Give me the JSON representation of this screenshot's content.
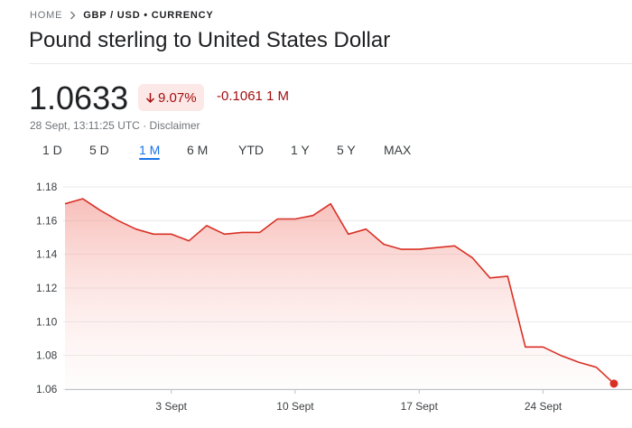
{
  "breadcrumb": {
    "home": "HOME",
    "current": "GBP / USD • CURRENCY"
  },
  "title": "Pound sterling to United States Dollar",
  "quote": {
    "price": "1.0633",
    "change_percent": "9.07%",
    "change_abs": "-0.1061 1 M",
    "timestamp": "28 Sept, 13:11:25 UTC",
    "separator": "·",
    "disclaimer": "Disclaimer"
  },
  "tabs": [
    "1 D",
    "5 D",
    "1 M",
    "6 M",
    "YTD",
    "1 Y",
    "5 Y",
    "MAX"
  ],
  "active_tab": "1 M",
  "colors": {
    "negative": "#d93025",
    "negative_bg": "#fce8e6",
    "accent": "#1a73e8"
  },
  "chart_data": {
    "type": "area",
    "title": "",
    "xlabel": "",
    "ylabel": "",
    "ylim": [
      1.06,
      1.18
    ],
    "y_ticks": [
      "1.18",
      "1.16",
      "1.14",
      "1.12",
      "1.10",
      "1.08",
      "1.06"
    ],
    "x_ticks": [
      {
        "label": "3 Sept",
        "x": 6
      },
      {
        "label": "10 Sept",
        "x": 13
      },
      {
        "label": "17 Sept",
        "x": 20
      },
      {
        "label": "24 Sept",
        "x": 27
      }
    ],
    "x": [
      0,
      1,
      2,
      3,
      4,
      5,
      6,
      7,
      8,
      9,
      10,
      11,
      12,
      13,
      14,
      15,
      16,
      17,
      18,
      19,
      20,
      21,
      22,
      23,
      24,
      25,
      26,
      27,
      28,
      29,
      30,
      31
    ],
    "series": [
      {
        "name": "GBP/USD",
        "values": [
          1.17,
          1.173,
          1.166,
          1.16,
          1.155,
          1.152,
          1.152,
          1.148,
          1.157,
          1.152,
          1.153,
          1.153,
          1.161,
          1.161,
          1.163,
          1.17,
          1.152,
          1.155,
          1.146,
          1.143,
          1.143,
          1.144,
          1.145,
          1.138,
          1.126,
          1.127,
          1.085,
          1.085,
          1.08,
          1.076,
          1.073,
          1.0633
        ]
      }
    ]
  }
}
